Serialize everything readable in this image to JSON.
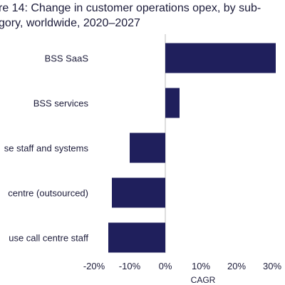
{
  "chart_data": {
    "type": "bar",
    "orientation": "horizontal",
    "title_lines": [
      "re 14: Change in customer operations opex, by sub-",
      "gory, worldwide, 2020–2027"
    ],
    "categories": [
      "BSS SaaS",
      "BSS services",
      "se staff and systems",
      " centre (outsourced)",
      "use call centre staff"
    ],
    "values": [
      31,
      4,
      -10,
      -15,
      -16
    ],
    "xlabel": "CAGR",
    "ylabel": "",
    "xlim": [
      -20,
      30
    ],
    "ticks": [
      -20,
      -10,
      0,
      10,
      20,
      30
    ],
    "tick_labels": [
      "-20%",
      "-10%",
      "0%",
      "10%",
      "20%",
      "30%"
    ],
    "bar_color": "#1f1f5c",
    "grid": false,
    "legend": "none"
  }
}
